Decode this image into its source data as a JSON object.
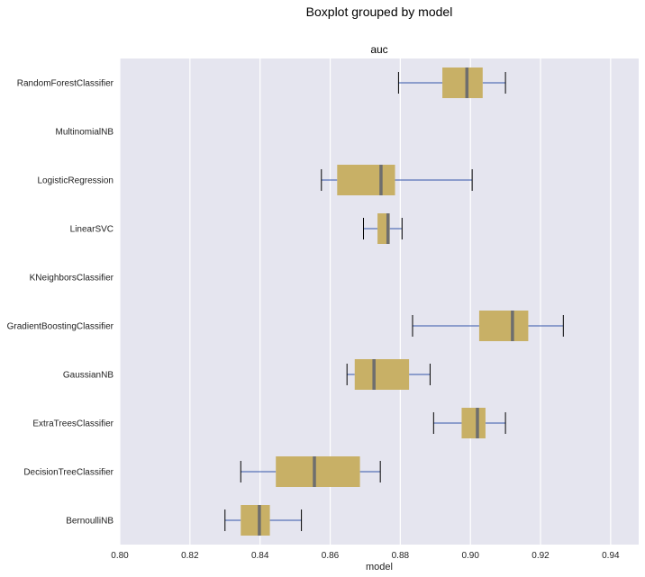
{
  "chart_data": {
    "type": "boxplot",
    "orientation": "horizontal",
    "title": "Boxplot grouped by model",
    "subtitle": "auc",
    "xlabel": "model",
    "xlim": [
      0.8,
      0.948
    ],
    "xticks": [
      "0.80",
      "0.82",
      "0.84",
      "0.86",
      "0.88",
      "0.90",
      "0.92",
      "0.94"
    ],
    "grid": true,
    "colors": {
      "background": "#e5e5ef",
      "box_fill": "#c8b066",
      "median": "#6e6e6e",
      "whisker": "#3355aa",
      "cap": "#000000",
      "grid": "#ffffff"
    },
    "categories": [
      "RandomForestClassifier",
      "MultinomialNB",
      "LogisticRegression",
      "LinearSVC",
      "KNeighborsClassifier",
      "GradientBoostingClassifier",
      "GaussianNB",
      "ExtraTreesClassifier",
      "DecisionTreeClassifier",
      "BernoulliNB"
    ],
    "boxes": [
      {
        "whislo": 0.8795,
        "q1": 0.892,
        "med": 0.899,
        "q3": 0.9035,
        "whishi": 0.91
      },
      null,
      {
        "whislo": 0.8575,
        "q1": 0.862,
        "med": 0.8745,
        "q3": 0.8785,
        "whishi": 0.9005
      },
      {
        "whislo": 0.8695,
        "q1": 0.8735,
        "med": 0.8765,
        "q3": 0.877,
        "whishi": 0.8805
      },
      null,
      {
        "whislo": 0.8835,
        "q1": 0.9025,
        "med": 0.912,
        "q3": 0.9165,
        "whishi": 0.9265
      },
      {
        "whislo": 0.8648,
        "q1": 0.867,
        "med": 0.8725,
        "q3": 0.8825,
        "whishi": 0.8885
      },
      {
        "whislo": 0.8895,
        "q1": 0.8975,
        "med": 0.902,
        "q3": 0.9043,
        "whishi": 0.91
      },
      {
        "whislo": 0.8345,
        "q1": 0.8445,
        "med": 0.8555,
        "q3": 0.8685,
        "whishi": 0.8743
      },
      {
        "whislo": 0.83,
        "q1": 0.8345,
        "med": 0.8398,
        "q3": 0.8428,
        "whishi": 0.8518
      }
    ]
  }
}
